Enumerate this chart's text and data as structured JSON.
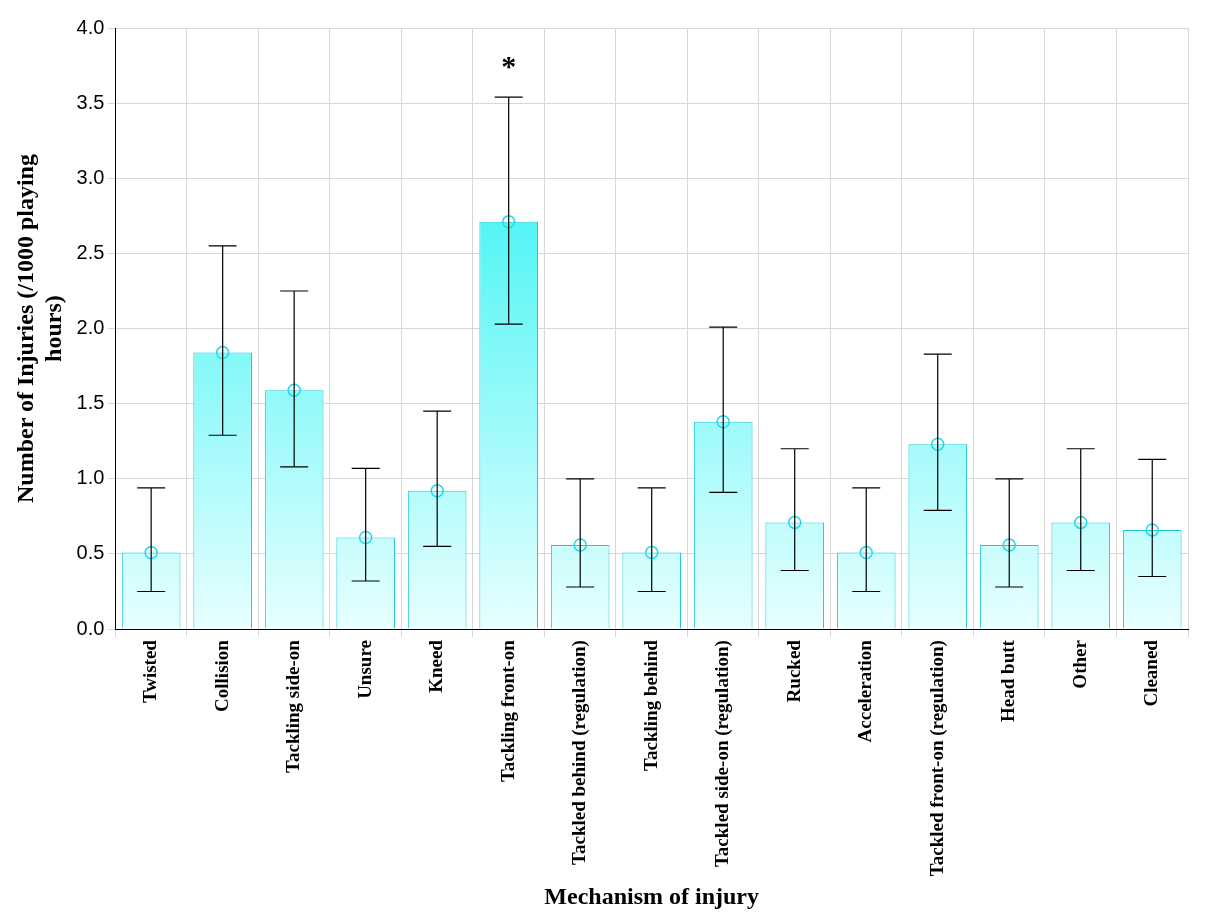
{
  "chart_data": {
    "type": "bar",
    "xlabel": "Mechanism of injury",
    "ylabel": "Number of Injuries (/1000 playing hours)",
    "categories": [
      "Twisted",
      "Collision",
      "Tackling side-on",
      "Unsure",
      "Kneed",
      "Tackling front-on",
      "Tackled behind (regulation)",
      "Tackling behind",
      "Tackled side-on (regulation)",
      "Rucked",
      "Acceleration",
      "Tackled front-on (regulation)",
      "Head butt",
      "Other",
      "Cleaned"
    ],
    "series": [
      {
        "color": "#4ff5f5",
        "values": [
          0.51,
          1.84,
          1.59,
          0.61,
          0.92,
          2.71,
          0.56,
          0.51,
          1.38,
          0.71,
          0.51,
          1.23,
          0.56,
          0.71,
          0.66
        ],
        "errors": [
          [
            0.25,
            0.94
          ],
          [
            1.29,
            2.55
          ],
          [
            1.08,
            2.25
          ],
          [
            0.32,
            1.07
          ],
          [
            0.55,
            1.45
          ],
          [
            2.03,
            3.54
          ],
          [
            0.28,
            1.0
          ],
          [
            0.25,
            0.94
          ],
          [
            0.91,
            2.01
          ],
          [
            0.39,
            1.2
          ],
          [
            0.25,
            0.94
          ],
          [
            0.79,
            1.83
          ],
          [
            0.28,
            1.0
          ],
          [
            0.39,
            1.2
          ],
          [
            0.35,
            1.13
          ]
        ]
      },
      {
        "type": "scatter",
        "color": "#20d8e8",
        "marker": "circle",
        "x": [
          "Twisted",
          "Collision",
          "Tackling side-on",
          "Unsure",
          "Kneed",
          "Tackling front-on",
          "Tackled behind (regulation)",
          "Tackling behind",
          "Tackled side-on (regulation)",
          "Rucked",
          "Acceleration",
          "Tackled front-on (regulation)",
          "Head butt",
          "Other",
          "Cleaned"
        ],
        "values": [
          0.51,
          1.84,
          1.59,
          0.61,
          0.92,
          2.71,
          0.56,
          0.51,
          1.38,
          0.71,
          0.51,
          1.23,
          0.56,
          0.71,
          0.66
        ]
      }
    ],
    "ylim": [
      0,
      4
    ],
    "yticks": [
      {
        "value": 0,
        "label": "0.0"
      },
      {
        "value": 0.5,
        "label": "0.5"
      },
      {
        "value": 1,
        "label": "1.0"
      },
      {
        "value": 1.5,
        "label": "1.5"
      },
      {
        "value": 2,
        "label": "2.0"
      },
      {
        "value": 2.5,
        "label": "2.5"
      },
      {
        "value": 3,
        "label": "3.0"
      },
      {
        "value": 3.5,
        "label": "3.5"
      },
      {
        "value": 4,
        "label": "4.0"
      }
    ],
    "grid": true,
    "annotations": [
      "*"
    ]
  }
}
